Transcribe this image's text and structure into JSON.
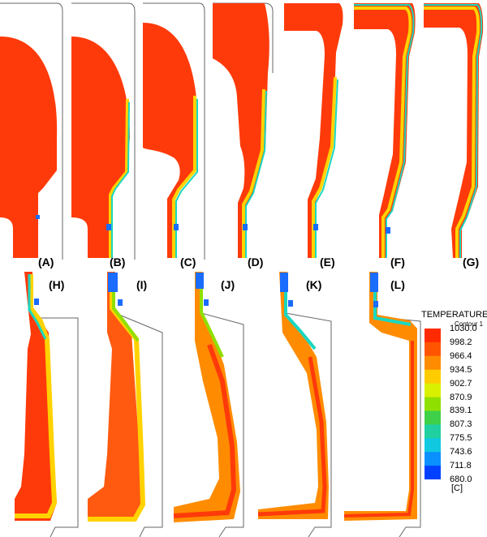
{
  "panels": [
    {
      "label": "(A)"
    },
    {
      "label": "(B)"
    },
    {
      "label": "(C)"
    },
    {
      "label": "(D)"
    },
    {
      "label": "(E)"
    },
    {
      "label": "(F)"
    },
    {
      "label": "(G)"
    },
    {
      "label": "(H)"
    },
    {
      "label": "(I)"
    },
    {
      "label": "(J)"
    },
    {
      "label": "(K)"
    },
    {
      "label": "(L)"
    }
  ],
  "legend": {
    "title": "TEMPERATURE",
    "subtitle": "Contour 1",
    "unit": "[C]",
    "values": [
      "1030.0",
      "998.2",
      "966.4",
      "934.5",
      "902.7",
      "870.9",
      "839.1",
      "807.3",
      "775.5",
      "743.6",
      "711.8",
      "680.0"
    ],
    "colors": [
      "#ff2a00",
      "#ff5500",
      "#ff8c00",
      "#ffcc00",
      "#d9f000",
      "#8fe000",
      "#3fd04a",
      "#20d0a0",
      "#10c8e0",
      "#0a90ff",
      "#0040ff"
    ]
  },
  "colors": {
    "hot": "#ff3a0a",
    "mid": "#ffd200",
    "warm": "#ff8c00",
    "cool": "#1ad7c0",
    "cold": "#1a6cff",
    "outline": "#555555"
  }
}
